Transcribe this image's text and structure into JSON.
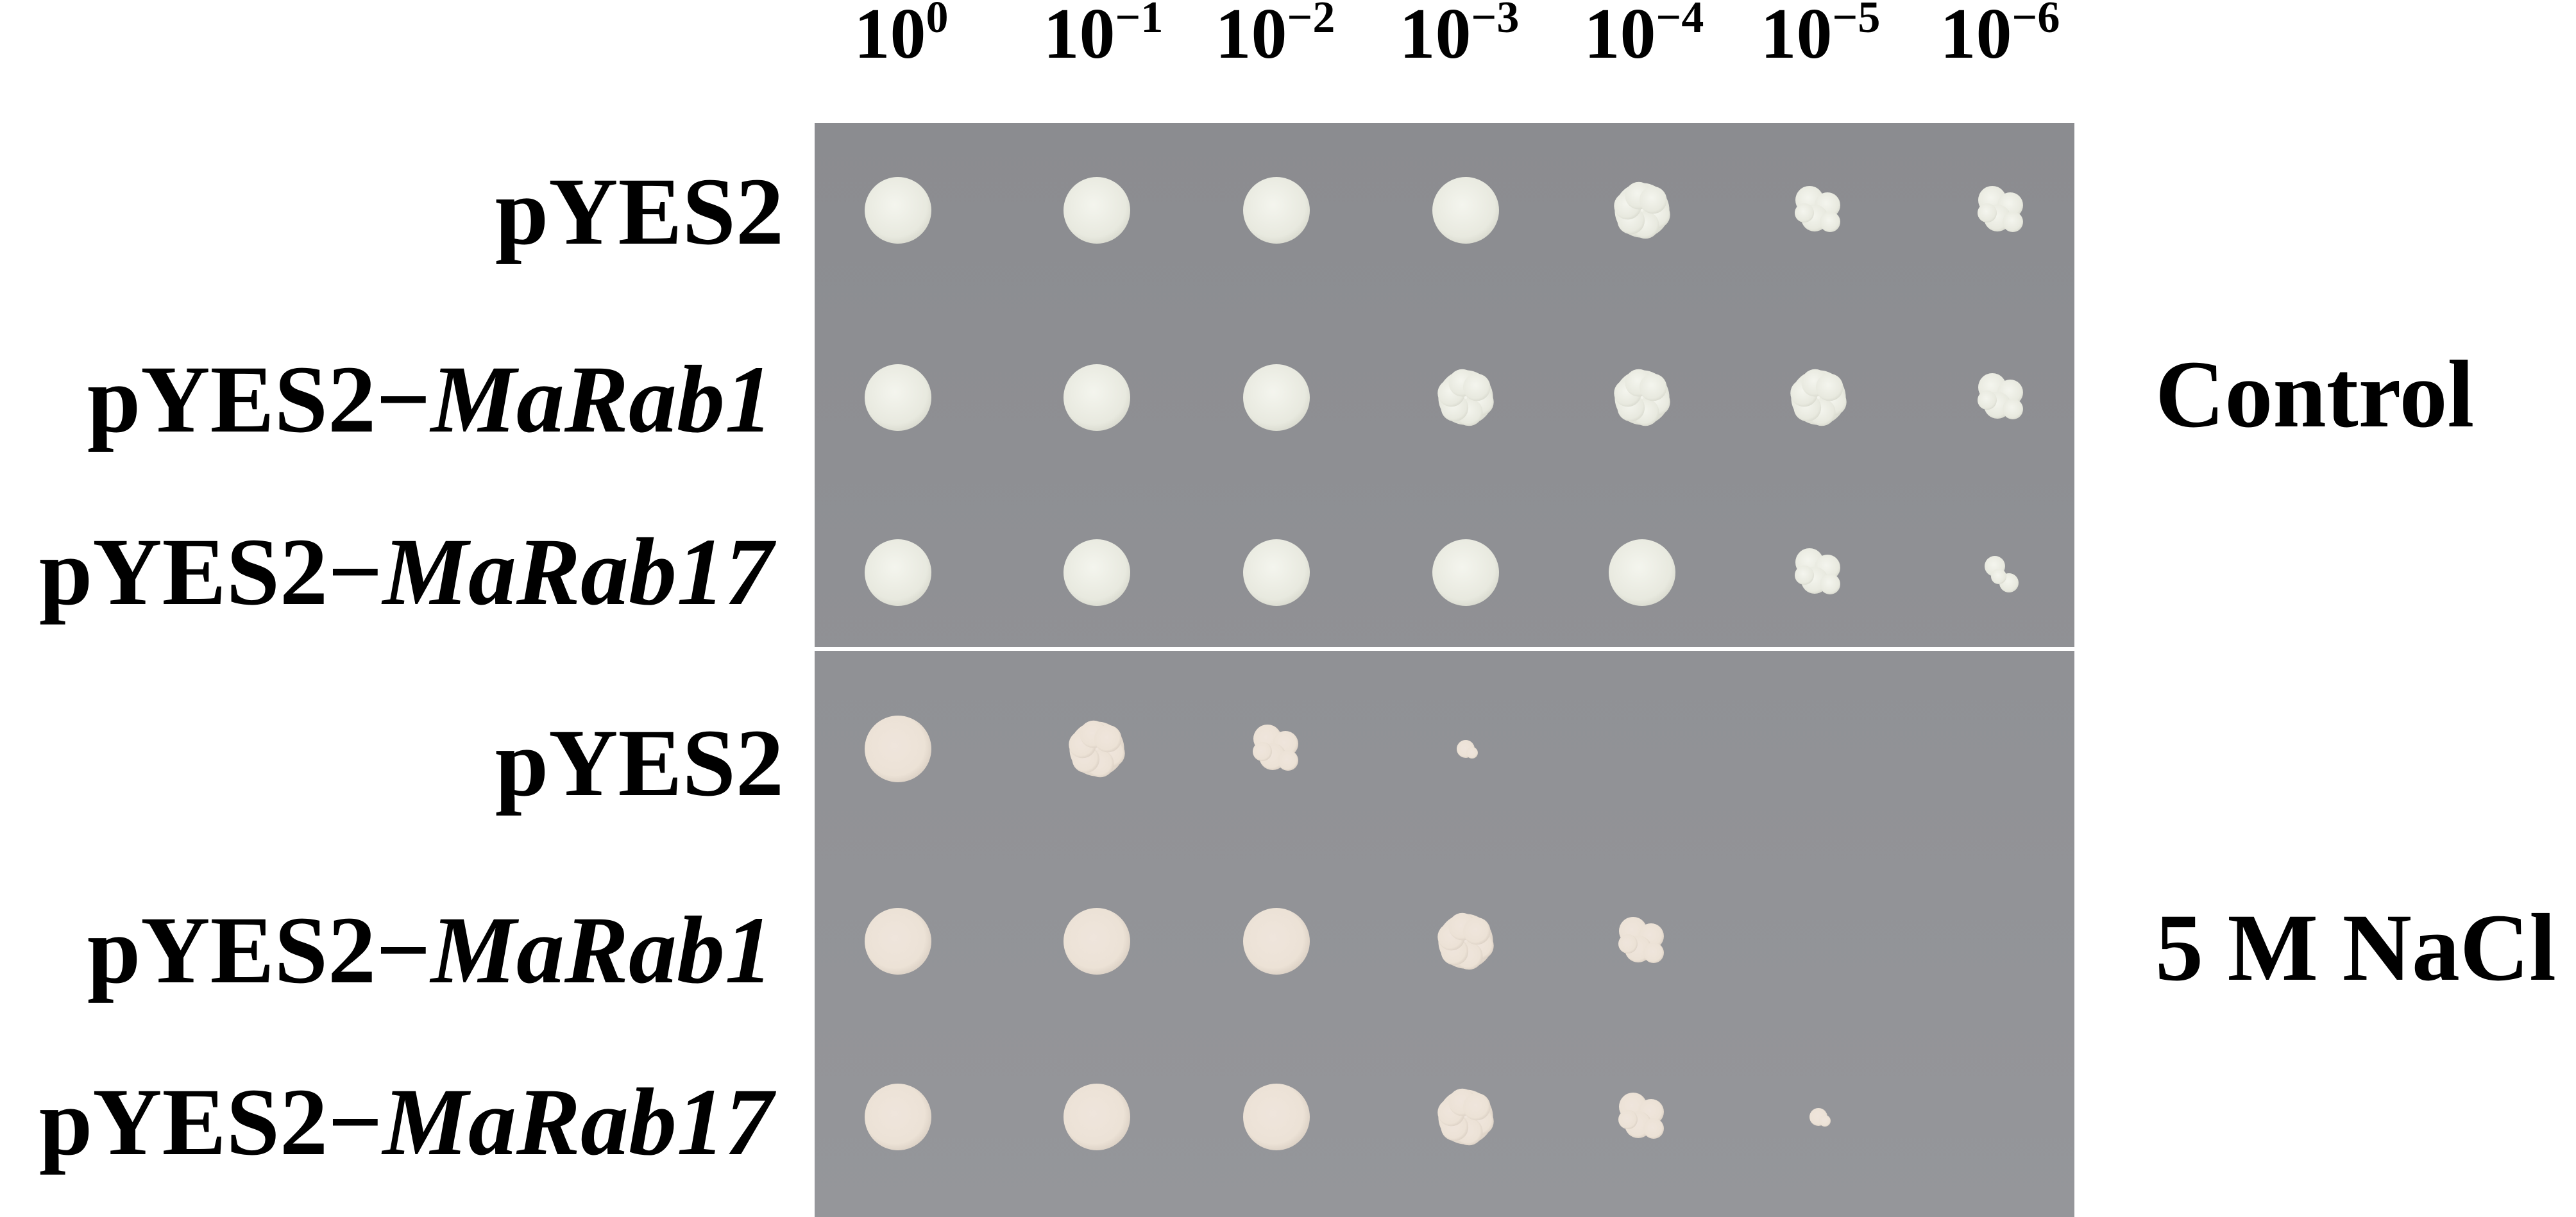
{
  "dilution_headers": [
    {
      "base": "10",
      "exp": "0"
    },
    {
      "base": "10",
      "exp": "−1"
    },
    {
      "base": "10",
      "exp": "−2"
    },
    {
      "base": "10",
      "exp": "−3"
    },
    {
      "base": "10",
      "exp": "−4"
    },
    {
      "base": "10",
      "exp": "−5"
    },
    {
      "base": "10",
      "exp": "−6"
    }
  ],
  "panels": [
    {
      "condition": "Control",
      "rows": [
        {
          "prefix": "pYES2",
          "gene": ""
        },
        {
          "prefix": "pYES2−",
          "gene": "MaRab1"
        },
        {
          "prefix": "pYES2−",
          "gene": "MaRab17"
        }
      ]
    },
    {
      "condition": "5 M NaCl",
      "rows": [
        {
          "prefix": "pYES2",
          "gene": ""
        },
        {
          "prefix": "pYES2−",
          "gene": "MaRab1"
        },
        {
          "prefix": "pYES2−",
          "gene": "MaRab17"
        }
      ]
    }
  ],
  "colors": {
    "plate_top": "#8b8c90",
    "plate_bottom": "#95969a",
    "colony_control": "#eeefe6",
    "colony_nacl": "#efe6dc",
    "divider": "#ffffff"
  },
  "colonies": [
    [
      [
        "round",
        "round",
        "round",
        "round",
        "lobed",
        "cluster",
        "cluster"
      ],
      [
        "round",
        "round",
        "round",
        "lobed",
        "lobed",
        "lobed",
        "cluster"
      ],
      [
        "round",
        "round",
        "round",
        "round",
        "round",
        "cluster",
        "tiny-cluster"
      ]
    ],
    [
      [
        "round",
        "lobed",
        "cluster",
        "speck",
        "none",
        "none",
        "none"
      ],
      [
        "round",
        "round",
        "round",
        "lobed",
        "cluster",
        "none",
        "none"
      ],
      [
        "round",
        "round",
        "round",
        "lobed",
        "cluster",
        "speck",
        "none"
      ]
    ]
  ]
}
